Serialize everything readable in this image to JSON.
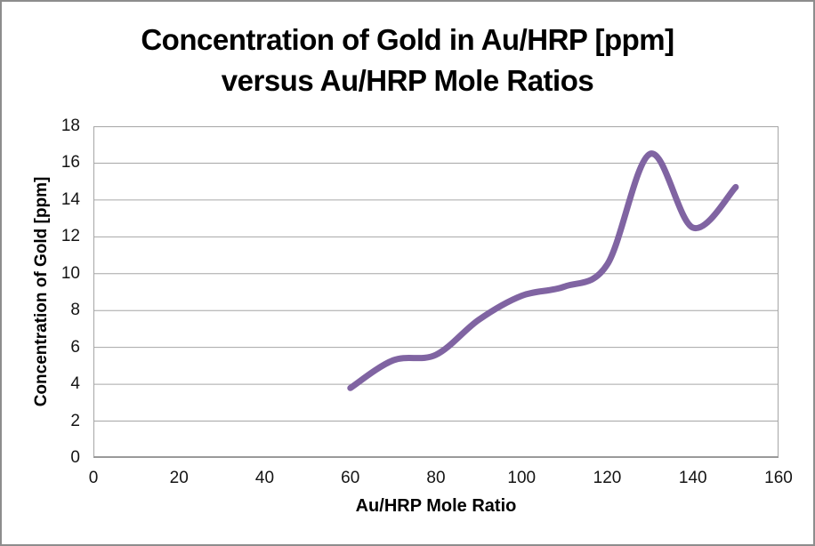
{
  "chart_data": {
    "type": "line",
    "title": "Concentration of Gold in Au/HRP [ppm] versus Au/HRP Mole Ratios",
    "title_lines": [
      "Concentration of Gold in Au/HRP [ppm]",
      "versus Au/HRP Mole Ratios"
    ],
    "xlabel": "Au/HRP Mole Ratio",
    "ylabel": "Concentration of Gold [ppm]",
    "xlim": [
      0,
      160
    ],
    "ylim": [
      0,
      18
    ],
    "x_ticks": [
      0,
      20,
      40,
      60,
      80,
      100,
      120,
      140,
      160
    ],
    "y_ticks": [
      0,
      2,
      4,
      6,
      8,
      10,
      12,
      14,
      16,
      18
    ],
    "grid": "horizontal-only",
    "legend": "none",
    "series": [
      {
        "smooth": true,
        "color": "#8064A2",
        "points": [
          [
            60,
            3.8
          ],
          [
            70,
            5.3
          ],
          [
            80,
            5.6
          ],
          [
            90,
            7.5
          ],
          [
            100,
            8.8
          ],
          [
            110,
            9.3
          ],
          [
            120,
            10.5
          ],
          [
            130,
            16.5
          ],
          [
            140,
            12.5
          ],
          [
            150,
            14.7
          ]
        ]
      }
    ]
  },
  "colors": {
    "line": "#8064A2",
    "gridline": "#A6A6A6",
    "plot_border": "#A6A6A6",
    "axis_line": "#9A9A9A",
    "text": "#000000",
    "frame_border": "#8D8D8D",
    "background": "#FFFFFF"
  }
}
